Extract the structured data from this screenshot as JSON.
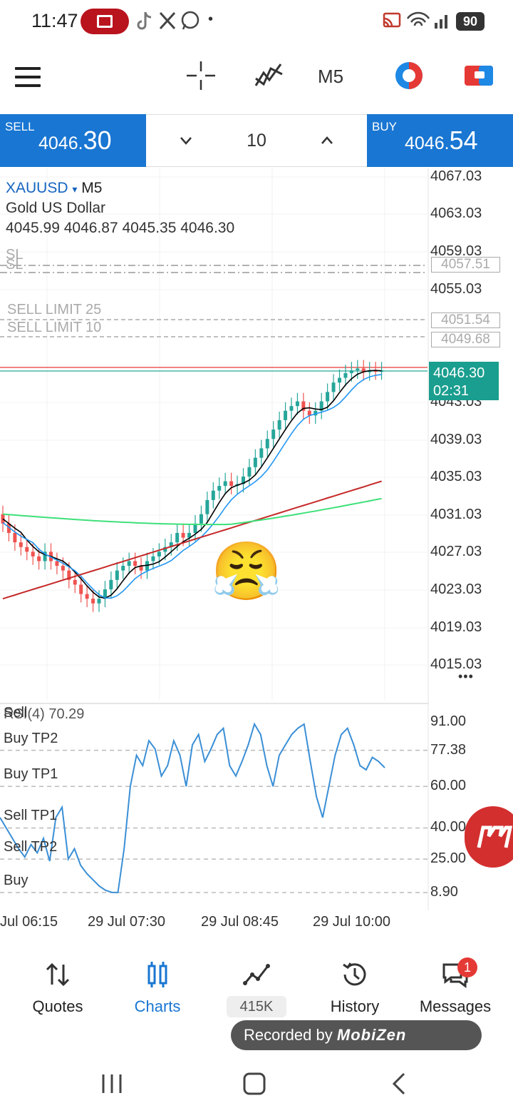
{
  "status_bar": {
    "time": "11:47",
    "battery": "90",
    "dot": "•"
  },
  "toolbar": {
    "timeframe": "M5"
  },
  "trade": {
    "sell_label": "SELL",
    "sell_price_prefix": "4046.",
    "sell_price_big": "30",
    "buy_label": "BUY",
    "buy_price_prefix": "4046.",
    "buy_price_big": "54",
    "lot": "10"
  },
  "chart": {
    "symbol": "XAUUSD",
    "symbol_arrow": "▾",
    "timeframe": "M5",
    "description": "Gold US Dollar",
    "ohlc": "4045.99 4046.87 4045.35 4046.30",
    "sl_label_1": "SL",
    "sl_label_2": "SL",
    "sell_limit_1": "SELL LIMIT 25",
    "sell_limit_2": "SELL LIMIT 10",
    "level_box_1": "4057.51",
    "level_box_2": "4051.54",
    "level_box_3": "4049.68",
    "current_price": "4046.30",
    "countdown": "02:31",
    "price_axis": [
      "4067.03",
      "4063.03",
      "4059.03",
      "4055.03",
      "4043.03",
      "4039.03",
      "4035.03",
      "4031.03",
      "4027.03",
      "4023.03",
      "4019.03",
      "4015.03"
    ],
    "more": "•••",
    "rsi_label": "RSI(4) 70.29",
    "rsi_overlap": "Sell",
    "rsi_axis": [
      "91.00",
      "77.38",
      "60.00",
      "40.00",
      "25.00",
      "8.90"
    ],
    "rsi_levels": [
      "Buy TP2",
      "Buy TP1",
      "Sell TP1",
      "Sell TP2",
      "Buy"
    ],
    "time_axis": [
      "Jul 06:15",
      "29 Jul 07:30",
      "29 Jul 08:45",
      "29 Jul 10:00"
    ],
    "emoji": "😤",
    "colors": {
      "bull": "#26a69a",
      "bear": "#ef5350",
      "ma_fast": "#000000",
      "ma_mid": "#2196f3",
      "ma_red": "#c62828",
      "ma_green": "#3ee07a",
      "rsi": "#3a8fd6"
    }
  },
  "nav": {
    "quotes": "Quotes",
    "charts": "Charts",
    "trade_count": "415K",
    "history": "History",
    "messages": "Messages",
    "messages_badge": "1"
  },
  "overlay": {
    "recorded_by": "Recorded by",
    "brand": "MobiZen"
  }
}
